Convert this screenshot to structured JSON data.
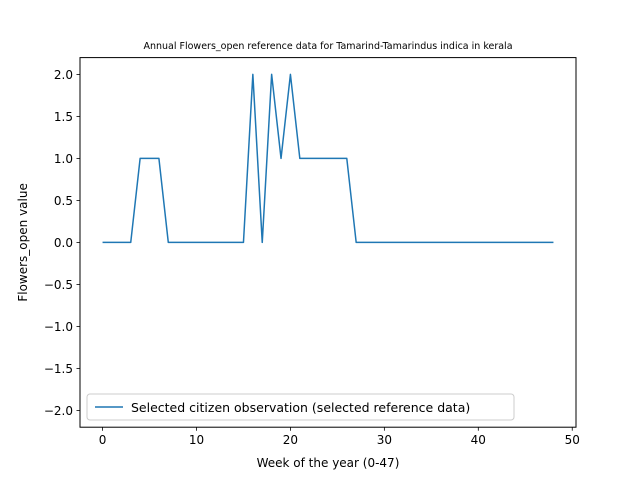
{
  "chart_data": {
    "type": "line",
    "title": "Annual Flowers_open reference data for Tamarind-Tamarindus indica in kerala",
    "xlabel": "Week of the year (0-47)",
    "ylabel": "Flowers_open value",
    "xlim": [
      -2.4,
      50.4
    ],
    "ylim": [
      -2.2,
      2.2
    ],
    "xticks": [
      0,
      10,
      20,
      30,
      40,
      50
    ],
    "yticks": [
      -2.0,
      -1.5,
      -1.0,
      -0.5,
      0.0,
      0.5,
      1.0,
      1.5,
      2.0
    ],
    "grid": false,
    "legend_position": "lower-left",
    "series": [
      {
        "name": "Selected citizen observation (selected reference data)",
        "color": "#1f77b4",
        "x": [
          0,
          1,
          2,
          3,
          4,
          5,
          6,
          7,
          8,
          9,
          10,
          11,
          12,
          13,
          14,
          15,
          16,
          17,
          18,
          19,
          20,
          21,
          22,
          23,
          24,
          25,
          26,
          27,
          28,
          29,
          30,
          31,
          32,
          33,
          34,
          35,
          36,
          37,
          38,
          39,
          40,
          41,
          42,
          43,
          44,
          45,
          46,
          47,
          48
        ],
        "y": [
          0,
          0,
          0,
          0,
          1,
          1,
          1,
          0,
          0,
          0,
          0,
          0,
          0,
          0,
          0,
          0,
          2,
          0,
          2,
          1,
          2,
          1,
          1,
          1,
          1,
          1,
          1,
          0,
          0,
          0,
          0,
          0,
          0,
          0,
          0,
          0,
          0,
          0,
          0,
          0,
          0,
          0,
          0,
          0,
          0,
          0,
          0,
          0,
          0
        ]
      }
    ]
  }
}
